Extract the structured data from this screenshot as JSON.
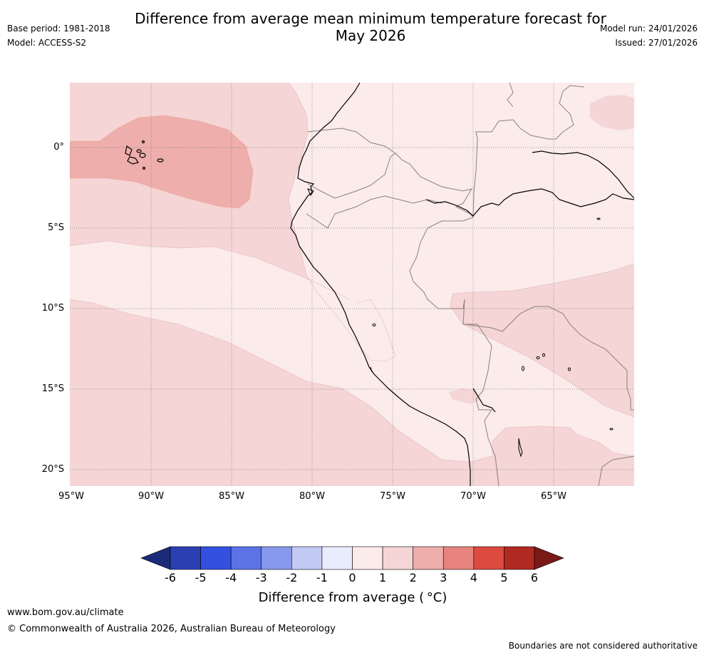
{
  "title_line1": "Difference from average mean minimum temperature forecast for",
  "title_line2": "May 2026",
  "base_period": "Base period: 1981-2018",
  "model": "Model: ACCESS-S2",
  "model_run": "Model run: 24/01/2026",
  "issued": "Issued: 27/01/2026",
  "lat_labels": [
    "0°",
    "5°S",
    "10°S",
    "15°S",
    "20°S"
  ],
  "lon_labels": [
    "95°W",
    "90°W",
    "85°W",
    "80°W",
    "75°W",
    "70°W",
    "65°W"
  ],
  "colorbar": {
    "ticks": [
      "-6",
      "-5",
      "-4",
      "-3",
      "-2",
      "-1",
      "0",
      "1",
      "2",
      "3",
      "4",
      "5",
      "6"
    ],
    "colors": [
      "#1b2a78",
      "#2b3fb3",
      "#3350e0",
      "#5b73e6",
      "#8898ec",
      "#c2c9f4",
      "#e9ecfb",
      "#fbebea",
      "#f5d5d5",
      "#eeaeab",
      "#e7847d",
      "#dc4b3f",
      "#b02a22",
      "#7a1a16"
    ],
    "label": "Difference from average ( °C)"
  },
  "footer_url": "www.bom.gov.au/climate",
  "footer_copyright": "© Commonwealth of Australia 2026, Australian Bureau of Meteorology",
  "footer_note": "Boundaries are not considered authoritative"
}
